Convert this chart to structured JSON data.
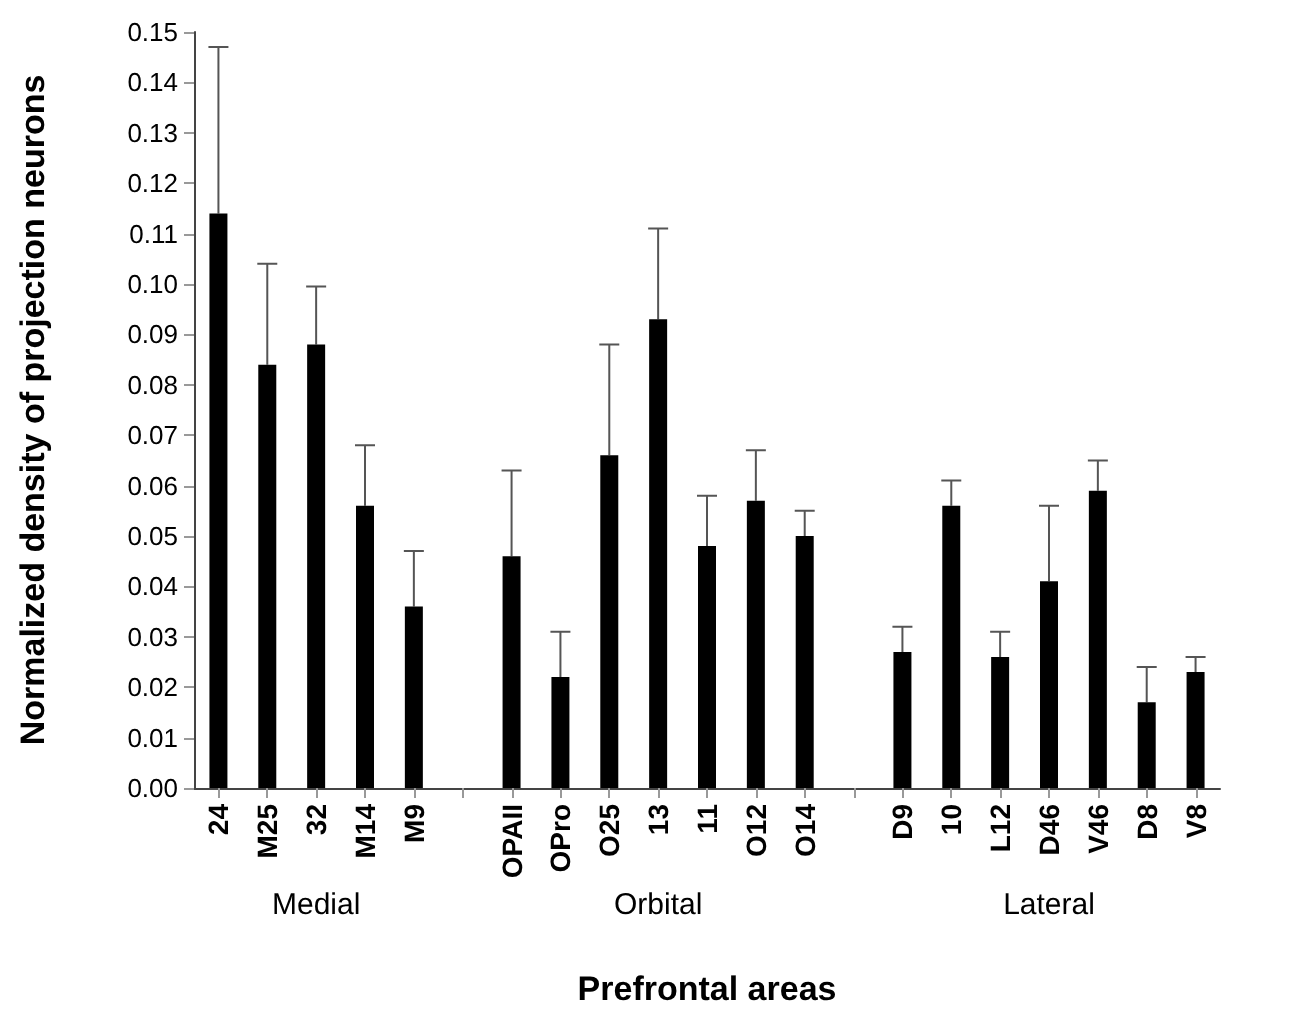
{
  "chart_data": {
    "type": "bar",
    "xlabel": "Prefrontal areas",
    "ylabel": "Normalized density of projection neurons",
    "categories": [
      "24",
      "M25",
      "32",
      "M14",
      "M9",
      null,
      "OPAII",
      "OPro",
      "O25",
      "13",
      "11",
      "O12",
      "O14",
      null,
      "D9",
      "10",
      "L12",
      "D46",
      "V46",
      "D8",
      "V8"
    ],
    "values": [
      0.114,
      0.084,
      0.088,
      0.056,
      0.036,
      null,
      0.046,
      0.022,
      0.066,
      0.093,
      0.048,
      0.057,
      0.05,
      null,
      0.027,
      0.056,
      0.026,
      0.041,
      0.059,
      0.017,
      0.023
    ],
    "errors": [
      [
        0.114,
        0.147
      ],
      [
        0.084,
        0.104
      ],
      [
        0.088,
        0.0995
      ],
      [
        0.056,
        0.068
      ],
      [
        0.036,
        0.047
      ],
      null,
      [
        0.046,
        0.063
      ],
      [
        0.022,
        0.031
      ],
      [
        0.066,
        0.088
      ],
      [
        0.093,
        0.111
      ],
      [
        0.048,
        0.058
      ],
      [
        0.057,
        0.067
      ],
      [
        0.05,
        0.055
      ],
      null,
      [
        0.027,
        0.032
      ],
      [
        0.056,
        0.061
      ],
      [
        0.026,
        0.031
      ],
      [
        0.041,
        0.056
      ],
      [
        0.059,
        0.065
      ],
      [
        0.017,
        0.024
      ],
      [
        0.023,
        0.026
      ]
    ],
    "color": "#000000",
    "ylim": [
      0,
      0.15
    ],
    "yticks": [
      {
        "value": 0,
        "label": "0.00"
      },
      {
        "value": 0.01,
        "label": "0.01"
      },
      {
        "value": 0.02,
        "label": "0.02"
      },
      {
        "value": 0.03,
        "label": "0.03"
      },
      {
        "value": 0.04,
        "label": "0.04"
      },
      {
        "value": 0.05,
        "label": "0.05"
      },
      {
        "value": 0.06,
        "label": "0.06"
      },
      {
        "value": 0.07,
        "label": "0.07"
      },
      {
        "value": 0.08,
        "label": "0.08"
      },
      {
        "value": 0.09,
        "label": "0.09"
      },
      {
        "value": 0.1,
        "label": "0.10"
      },
      {
        "value": 0.11,
        "label": "0.11"
      },
      {
        "value": 0.12,
        "label": "0.12"
      },
      {
        "value": 0.13,
        "label": "0.13"
      },
      {
        "value": 0.14,
        "label": "0.14"
      },
      {
        "value": 0.15,
        "label": "0.15"
      }
    ],
    "annotations": [
      "Medial",
      "Orbital",
      "Lateral"
    ],
    "grid": false
  }
}
